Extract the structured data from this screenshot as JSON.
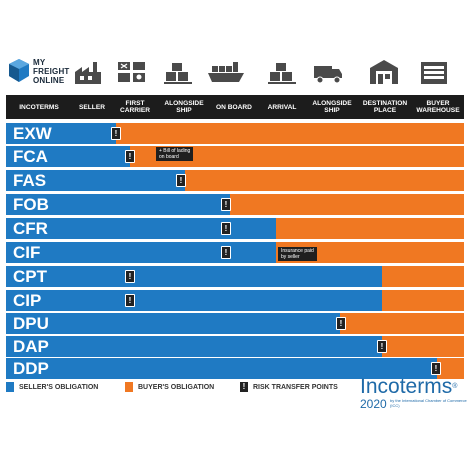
{
  "brand": {
    "line1": "MY",
    "line2": "FREIGHT",
    "line3": "ONLINE"
  },
  "icons": [
    "factory-icon",
    "forklift-icon",
    "boxes-icon",
    "cargo-ship-icon",
    "cargo-boxes-icon",
    "delivery-truck-icon",
    "warehouse-icon",
    "buyer-warehouse-icon"
  ],
  "header": {
    "incoterms": "INCOTERMS",
    "seller": "SELLER",
    "first_carrier": "FIRST\nCARRIER",
    "alongside_ship": "ALONGSIDE\nSHIP",
    "on_board": "ON BOARD",
    "arrival": "ARRIVAL",
    "alongside_ship_2": "ALONGSIDE\nSHIP",
    "destination_place": "DESTINATION\nPLACE",
    "buyer_warehouse": "BUYER\nWAREHOUSE"
  },
  "rows": [
    {
      "code": "EXW",
      "seller_share": 0.24,
      "marker": "!"
    },
    {
      "code": "FCA",
      "seller_share": 0.27,
      "marker": "!"
    },
    {
      "code": "FAS",
      "seller_share": 0.39,
      "marker": "!"
    },
    {
      "code": "FOB",
      "seller_share": 0.49,
      "marker": "!"
    },
    {
      "code": "CFR",
      "seller_share": 0.59,
      "marker": "!"
    },
    {
      "code": "CIF",
      "seller_share": 0.59,
      "marker": "!"
    },
    {
      "code": "CPT",
      "seller_share": 0.82,
      "marker": "!"
    },
    {
      "code": "CIP",
      "seller_share": 0.82,
      "marker": "!"
    },
    {
      "code": "DPU",
      "seller_share": 0.73,
      "marker": "!"
    },
    {
      "code": "DAP",
      "seller_share": 0.82,
      "marker": "!"
    },
    {
      "code": "DDP",
      "seller_share": 0.94,
      "marker": "!"
    }
  ],
  "notes": {
    "fca": "+ Bill of lading\non board",
    "cif": "Insurance paid\nby seller"
  },
  "legend": {
    "seller": "SELLER'S OBLIGATION",
    "buyer": "BUYER'S OBLIGATION",
    "risk_marker": "!",
    "risk": "RISK TRANSFER POINTS"
  },
  "incoterms_logo": {
    "title": "Incoterms",
    "reg": "®",
    "year": "2020",
    "small": "by the International Chamber of Commerce (ICC)"
  },
  "colors": {
    "seller": "#1f7ac3",
    "buyer": "#f07822",
    "header": "#1c1c1c",
    "marker": "#222222"
  }
}
